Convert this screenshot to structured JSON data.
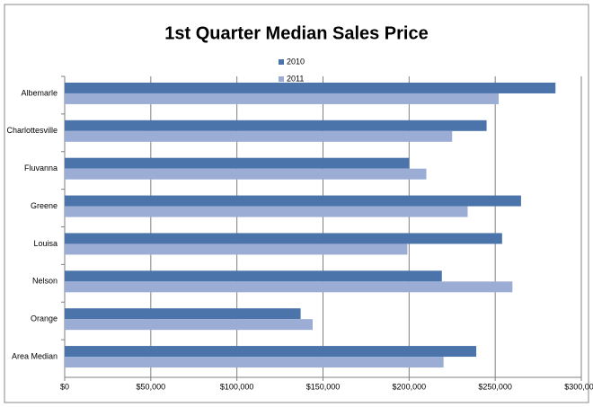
{
  "chart_data": {
    "type": "hbar",
    "title": "1st Quarter Median Sales Price",
    "categories": [
      "Albemarle",
      "Charlottesville",
      "Fluvanna",
      "Greene",
      "Louisa",
      "Nelson",
      "Orange",
      "Area Median"
    ],
    "series": [
      {
        "name": "2010",
        "color": "#4a74aa",
        "values": [
          285000,
          245000,
          200000,
          265000,
          254000,
          219000,
          137000,
          239000
        ]
      },
      {
        "name": "2011",
        "color": "#9badd5",
        "values": [
          252000,
          225000,
          210000,
          234000,
          199000,
          260000,
          144000,
          220000
        ]
      }
    ],
    "xlim": [
      0,
      300000
    ],
    "xticks": [
      {
        "value": 0,
        "label": "$0"
      },
      {
        "value": 50000,
        "label": "$50,000"
      },
      {
        "value": 100000,
        "label": "$100,000"
      },
      {
        "value": 150000,
        "label": "$150,000"
      },
      {
        "value": 200000,
        "label": "$200,000"
      },
      {
        "value": 250000,
        "label": "$250,000"
      },
      {
        "value": 300000,
        "label": "$300,000"
      }
    ],
    "grid": true,
    "legend": "top"
  }
}
